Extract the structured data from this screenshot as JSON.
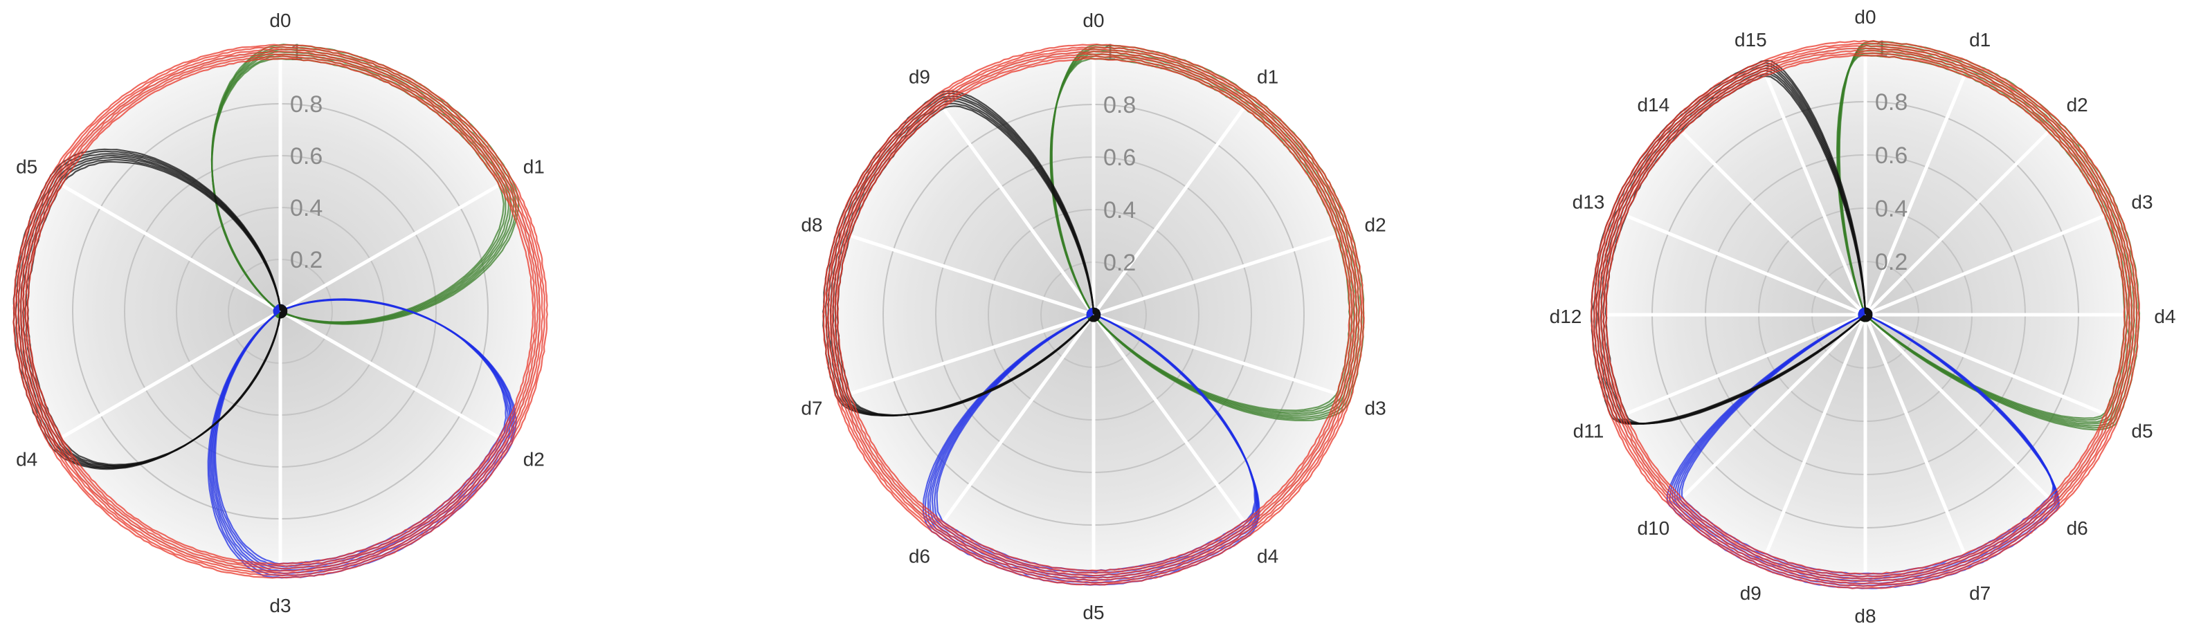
{
  "chart_data": [
    {
      "type": "radar",
      "axes": [
        "d0",
        "d1",
        "d2",
        "d3",
        "d4",
        "d5"
      ],
      "rticks": [
        "0.2",
        "0.4",
        "0.6",
        "0.8",
        "1"
      ],
      "rlim": [
        0,
        1
      ],
      "series": [
        {
          "color": "#3a7f2a",
          "values": [
            1,
            1,
            0,
            0,
            0,
            0
          ]
        },
        {
          "color": "#1f2fe6",
          "values": [
            0,
            0,
            1,
            1,
            0,
            0
          ]
        },
        {
          "color": "#111111",
          "values": [
            0,
            0,
            0,
            0,
            1,
            1
          ]
        },
        {
          "color": "#e8372a",
          "values": [
            1,
            1,
            1,
            1,
            1,
            1
          ]
        }
      ]
    },
    {
      "type": "radar",
      "axes": [
        "d0",
        "d1",
        "d2",
        "d3",
        "d4",
        "d5",
        "d6",
        "d7",
        "d8",
        "d9"
      ],
      "rticks": [
        "0.2",
        "0.4",
        "0.6",
        "0.8",
        "1"
      ],
      "rlim": [
        0,
        1
      ],
      "series": [
        {
          "color": "#3a7f2a",
          "values": [
            1,
            1,
            1,
            1,
            0,
            0,
            0,
            0,
            0,
            0
          ]
        },
        {
          "color": "#1f2fe6",
          "values": [
            0,
            0,
            0,
            0,
            1,
            1,
            1,
            0,
            0,
            0
          ]
        },
        {
          "color": "#111111",
          "values": [
            0,
            0,
            0,
            0,
            0,
            0,
            0,
            1,
            1,
            1
          ]
        },
        {
          "color": "#e8372a",
          "values": [
            1,
            1,
            1,
            1,
            1,
            1,
            1,
            1,
            1,
            1
          ]
        }
      ]
    },
    {
      "type": "radar",
      "axes": [
        "d0",
        "d1",
        "d2",
        "d3",
        "d4",
        "d5",
        "d6",
        "d7",
        "d8",
        "d9",
        "d10",
        "d11",
        "d12",
        "d13",
        "d14",
        "d15"
      ],
      "rticks": [
        "0.2",
        "0.4",
        "0.6",
        "0.8",
        "1"
      ],
      "rlim": [
        0,
        1
      ],
      "series": [
        {
          "color": "#3a7f2a",
          "values": [
            1,
            1,
            1,
            1,
            1,
            1,
            0,
            0,
            0,
            0,
            0,
            0,
            0,
            0,
            0,
            0
          ]
        },
        {
          "color": "#1f2fe6",
          "values": [
            0,
            0,
            0,
            0,
            0,
            0,
            1,
            1,
            1,
            1,
            1,
            0,
            0,
            0,
            0,
            0
          ]
        },
        {
          "color": "#111111",
          "values": [
            0,
            0,
            0,
            0,
            0,
            0,
            0,
            0,
            0,
            0,
            0,
            1,
            1,
            1,
            1,
            1
          ]
        },
        {
          "color": "#e8372a",
          "values": [
            1,
            1,
            1,
            1,
            1,
            1,
            1,
            1,
            1,
            1,
            1,
            1,
            1,
            1,
            1,
            1
          ]
        }
      ]
    }
  ]
}
